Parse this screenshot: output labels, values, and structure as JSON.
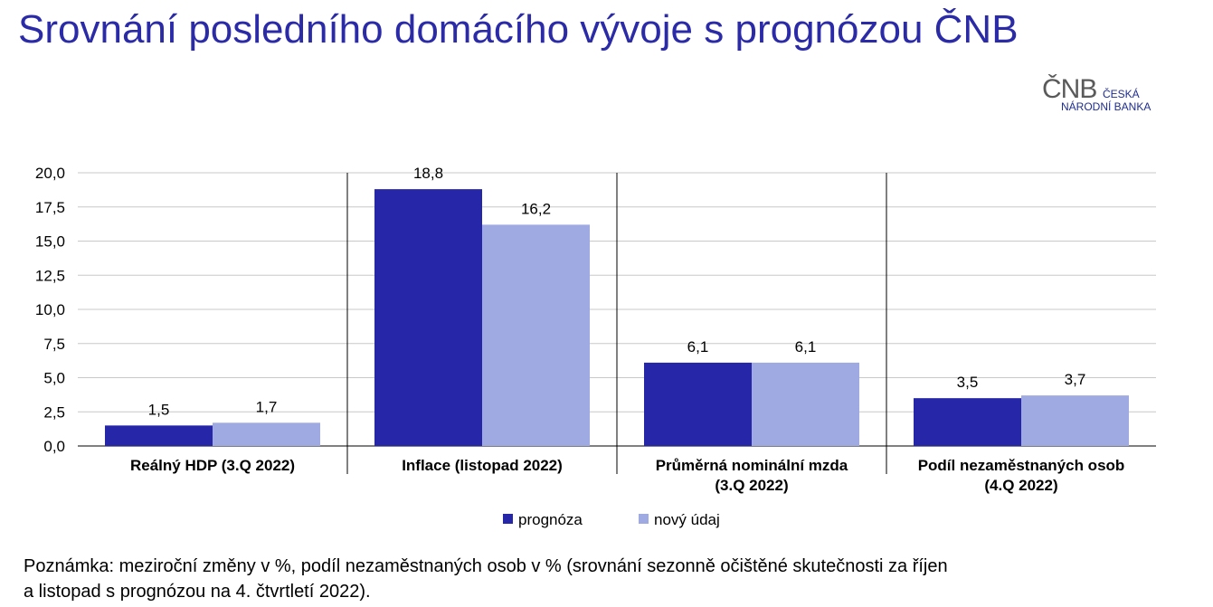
{
  "title": "Srovnání posledního domácího vývoje s prognózou ČNB",
  "logo": {
    "mark": "ČNB",
    "line1": "ČESKÁ",
    "line2": "NÁRODNÍ BANKA"
  },
  "colors": {
    "title": "#2b2ba8",
    "series_prognoza": "#2626a8",
    "series_novy": "#9fa9e2",
    "grid": "#c8c8c8",
    "axis": "#000000"
  },
  "chart_data": {
    "type": "bar",
    "categories": [
      [
        "Reálný HDP (3.Q 2022)"
      ],
      [
        "Inflace (listopad 2022)"
      ],
      [
        "Průměrná nominální mzda",
        "(3.Q 2022)"
      ],
      [
        "Podíl nezaměstnaných osob",
        "(4.Q 2022)"
      ]
    ],
    "series": [
      {
        "name": "prognóza",
        "values": [
          1.5,
          18.8,
          6.1,
          3.5
        ],
        "labels": [
          "1,5",
          "18,8",
          "6,1",
          "3,5"
        ]
      },
      {
        "name": "nový údaj",
        "values": [
          1.7,
          16.2,
          6.1,
          3.7
        ],
        "labels": [
          "1,7",
          "16,2",
          "6,1",
          "3,7"
        ]
      }
    ],
    "ylim": [
      0,
      20
    ],
    "yticks": [
      "0,0",
      "2,5",
      "5,0",
      "7,5",
      "10,0",
      "12,5",
      "15,0",
      "17,5",
      "20,0"
    ],
    "grid": true,
    "legend": "bottom"
  },
  "note": {
    "line1": "Poznámka: meziroční změny v %, podíl nezaměstnaných osob v % (srovnání sezonně očištěné skutečnosti za říjen",
    "line2": "a listopad s prognózou na 4. čtvrtletí 2022)."
  }
}
